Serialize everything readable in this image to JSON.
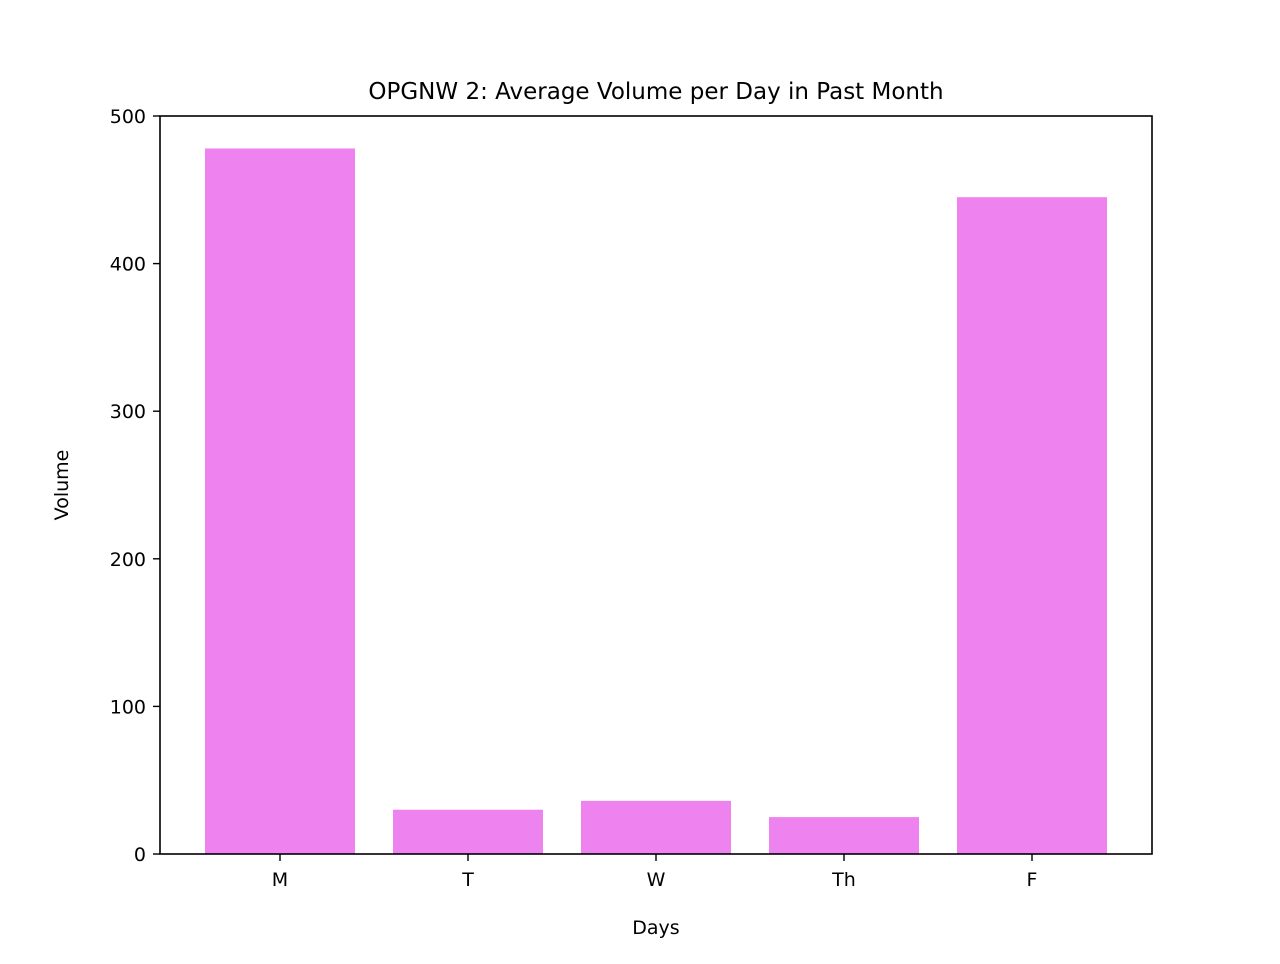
{
  "chart_data": {
    "type": "bar",
    "title": "OPGNW 2: Average Volume per Day in Past Month",
    "xlabel": "Days",
    "ylabel": "Volume",
    "categories": [
      "M",
      "T",
      "W",
      "Th",
      "F"
    ],
    "values": [
      478,
      30,
      36,
      25,
      445
    ],
    "ylim": [
      0,
      500
    ],
    "yticks": [
      0,
      100,
      200,
      300,
      400,
      500
    ],
    "bar_color": "#ee82ee",
    "grid": false,
    "legend": "none"
  }
}
